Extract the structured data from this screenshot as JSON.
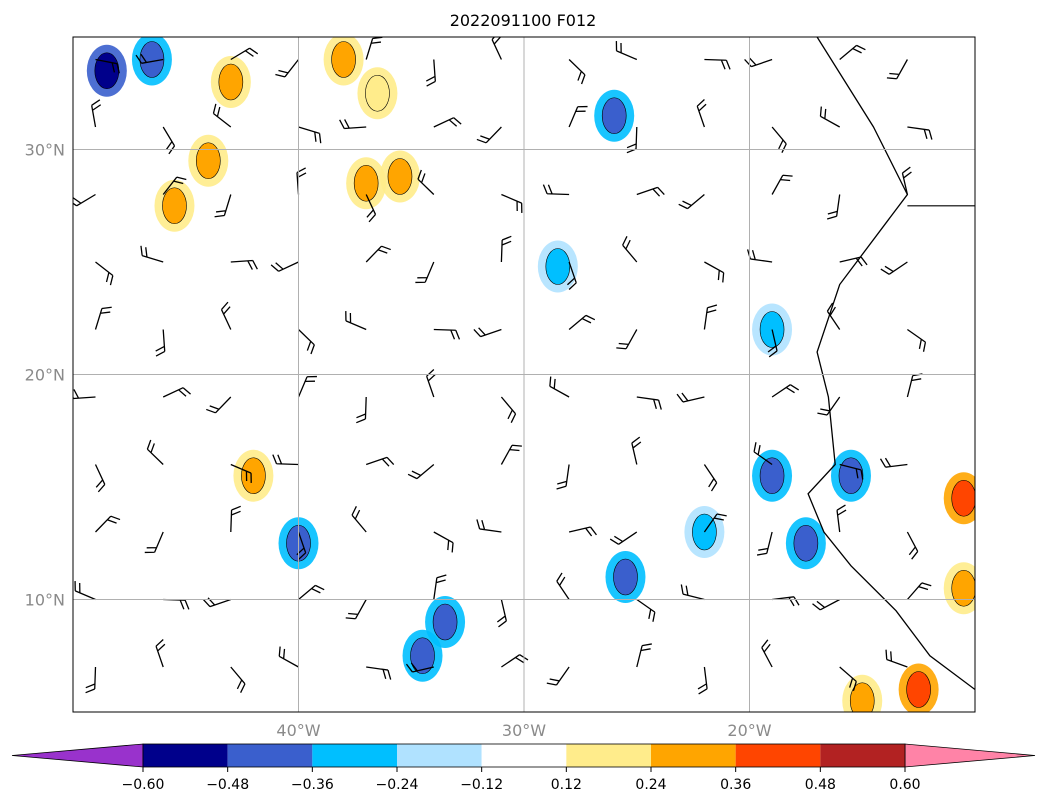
{
  "chart_data": {
    "type": "heatmap",
    "title": "2022091100 F012",
    "xlabel": "",
    "ylabel": "",
    "xlim": [
      -50,
      -10
    ],
    "ylim": [
      5,
      35
    ],
    "x_ticks": [
      {
        "value": -40,
        "label": "40°W"
      },
      {
        "value": -30,
        "label": "30°W"
      },
      {
        "value": -20,
        "label": "20°W"
      }
    ],
    "y_ticks": [
      {
        "value": 30,
        "label": "30°N"
      },
      {
        "value": 20,
        "label": "20°N"
      },
      {
        "value": 10,
        "label": "10°N"
      }
    ],
    "grid": true,
    "colorbar": {
      "orientation": "horizontal",
      "extend": "both",
      "levels": [
        -0.6,
        -0.48,
        -0.36,
        -0.24,
        -0.12,
        0.12,
        0.24,
        0.36,
        0.48,
        0.6
      ],
      "tick_labels": [
        "−0.60",
        "−0.48",
        "−0.36",
        "−0.24",
        "−0.12",
        "0.12",
        "0.24",
        "0.36",
        "0.48",
        "0.60"
      ],
      "colors": [
        "#9932cc",
        "#00008b",
        "#3a5fcd",
        "#00bfff",
        "#b0e2ff",
        "#ffffff",
        "#ffec8b",
        "#ffa500",
        "#ff4500",
        "#b22222",
        "#ff83a7"
      ]
    },
    "colors": {
      "under": "#9932cc",
      "over": "#ff83a7",
      "coast": "#000000",
      "grid": "#b0b0b0"
    },
    "cells": [
      {
        "lon": -48.5,
        "lat": 33.5,
        "level": -0.48
      },
      {
        "lon": -46.5,
        "lat": 34.0,
        "level": -0.36
      },
      {
        "lon": -43.0,
        "lat": 33.0,
        "level": 0.24
      },
      {
        "lon": -44.0,
        "lat": 29.5,
        "level": 0.24
      },
      {
        "lon": -45.5,
        "lat": 27.5,
        "level": 0.24
      },
      {
        "lon": -37.0,
        "lat": 28.5,
        "level": 0.24
      },
      {
        "lon": -35.5,
        "lat": 28.8,
        "level": 0.24
      },
      {
        "lon": -36.5,
        "lat": 32.5,
        "level": 0.12
      },
      {
        "lon": -38.0,
        "lat": 34.0,
        "level": 0.24
      },
      {
        "lon": -26.0,
        "lat": 31.5,
        "level": -0.36
      },
      {
        "lon": -28.5,
        "lat": 24.8,
        "level": -0.24
      },
      {
        "lon": -19.0,
        "lat": 22.0,
        "level": -0.24
      },
      {
        "lon": -42.0,
        "lat": 15.5,
        "level": 0.24
      },
      {
        "lon": -40.0,
        "lat": 12.5,
        "level": -0.36
      },
      {
        "lon": -33.5,
        "lat": 9.0,
        "level": -0.36
      },
      {
        "lon": -34.5,
        "lat": 7.5,
        "level": -0.36
      },
      {
        "lon": -25.5,
        "lat": 11.0,
        "level": -0.36
      },
      {
        "lon": -19.0,
        "lat": 15.5,
        "level": -0.36
      },
      {
        "lon": -17.5,
        "lat": 12.5,
        "level": -0.36
      },
      {
        "lon": -15.5,
        "lat": 15.5,
        "level": -0.36
      },
      {
        "lon": -22.0,
        "lat": 13.0,
        "level": -0.24
      },
      {
        "lon": -10.5,
        "lat": 14.5,
        "level": 0.36
      },
      {
        "lon": -10.5,
        "lat": 10.5,
        "level": 0.24
      },
      {
        "lon": -12.5,
        "lat": 6.0,
        "level": 0.36
      },
      {
        "lon": -15.0,
        "lat": 5.5,
        "level": 0.24
      }
    ]
  }
}
